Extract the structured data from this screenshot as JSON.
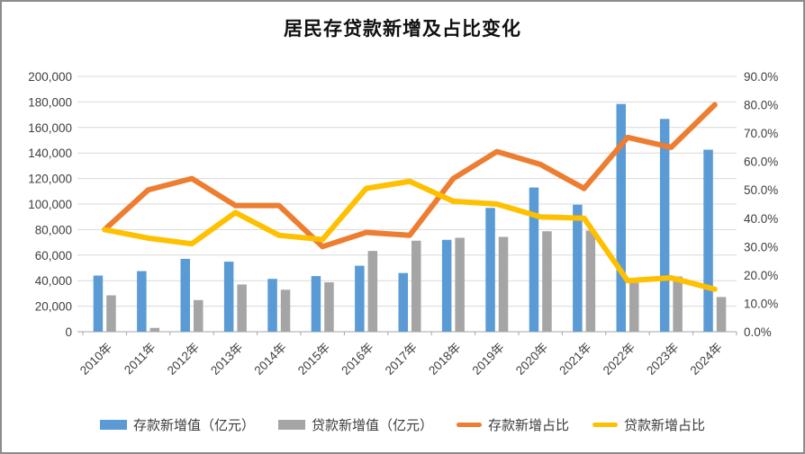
{
  "chart_data": {
    "type": "combo-bar-line",
    "title": "居民存贷款新增及占比变化",
    "categories": [
      "2010年",
      "2011年",
      "2012年",
      "2013年",
      "2014年",
      "2015年",
      "2016年",
      "2017年",
      "2018年",
      "2019年",
      "2020年",
      "2021年",
      "2022年",
      "2023年",
      "2024年"
    ],
    "bar_series": [
      {
        "name": "存款新增值（亿元）",
        "color": "#5B9BD5",
        "axis": "left",
        "values": [
          44000,
          47500,
          57100,
          54900,
          41400,
          43600,
          51700,
          46000,
          72000,
          97000,
          113000,
          99500,
          178400,
          166700,
          142600
        ]
      },
      {
        "name": "贷款新增值（亿元）",
        "color": "#A5A5A5",
        "axis": "left",
        "values": [
          28500,
          3000,
          24800,
          37000,
          32900,
          38700,
          63300,
          71300,
          73600,
          74300,
          78700,
          79200,
          38300,
          43300,
          27200
        ]
      }
    ],
    "line_series": [
      {
        "name": "存款新增占比",
        "color": "#ED7D31",
        "axis": "right",
        "values_pct": [
          36,
          50,
          54,
          44.5,
          44.5,
          30,
          35,
          34,
          54,
          63.5,
          59,
          50.5,
          68.5,
          65,
          80
        ]
      },
      {
        "name": "贷款新增占比",
        "color": "#FFC000",
        "axis": "right",
        "values_pct": [
          36,
          33,
          31,
          42,
          34,
          32.5,
          50.5,
          53,
          46,
          45,
          40.5,
          40,
          18,
          19,
          15
        ]
      }
    ],
    "left_axis": {
      "min": 0,
      "max": 200000,
      "step": 20000,
      "tick_labels": [
        "0",
        "20,000",
        "40,000",
        "60,000",
        "80,000",
        "100,000",
        "120,000",
        "140,000",
        "160,000",
        "180,000",
        "200,000"
      ]
    },
    "right_axis": {
      "min": 0,
      "max": 90,
      "step": 10,
      "tick_labels": [
        "0.0%",
        "10.0%",
        "20.0%",
        "30.0%",
        "40.0%",
        "50.0%",
        "60.0%",
        "70.0%",
        "80.0%",
        "90.0%"
      ]
    },
    "grid": true,
    "legend_position": "bottom",
    "x_labels_rotation_deg": -45
  }
}
